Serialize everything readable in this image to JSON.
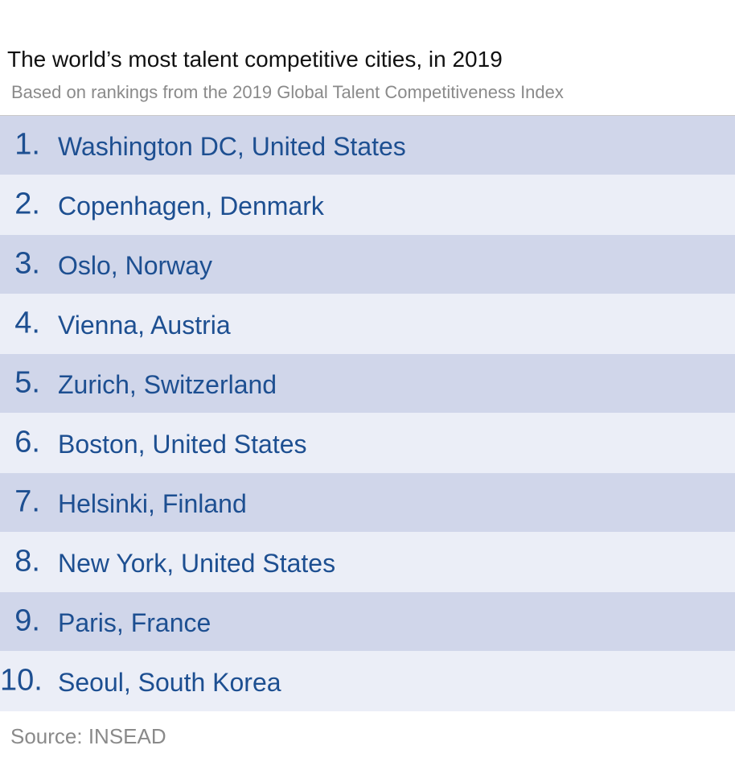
{
  "chart_data": {
    "type": "table",
    "title": "The world’s most talent competitive cities, in 2019",
    "subtitle": "Based on rankings from the 2019 Global Talent Competitiveness Index",
    "source": "Source: INSEAD",
    "rows": [
      {
        "rank": "1.",
        "city": "Washington DC, United States"
      },
      {
        "rank": "2.",
        "city": "Copenhagen, Denmark"
      },
      {
        "rank": "3.",
        "city": "Oslo, Norway"
      },
      {
        "rank": "4.",
        "city": "Vienna, Austria"
      },
      {
        "rank": "5.",
        "city": "Zurich, Switzerland"
      },
      {
        "rank": "6.",
        "city": "Boston, United States"
      },
      {
        "rank": "7.",
        "city": "Helsinki, Finland"
      },
      {
        "rank": "8.",
        "city": "New York, United States"
      },
      {
        "rank": "9.",
        "city": "Paris, France"
      },
      {
        "rank": "10.",
        "city": "Seoul, South Korea"
      }
    ]
  },
  "colors": {
    "row_dark": "#d0d6ea",
    "row_light": "#ebeef7",
    "text_blue": "#1d4f91",
    "title": "#111111",
    "muted": "#8a8a8a"
  }
}
